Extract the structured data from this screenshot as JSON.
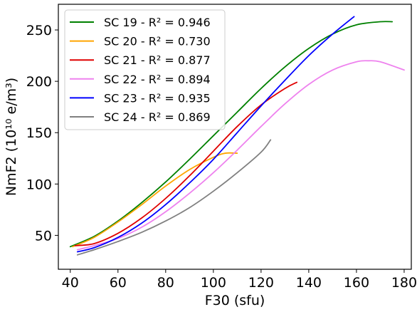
{
  "chart_data": {
    "type": "line",
    "title": "",
    "xlabel": "F30 (sfu)",
    "ylabel": "NmF2 (10¹⁰ e/m³)",
    "xlim": [
      35,
      183
    ],
    "ylim": [
      17,
      275
    ],
    "xticks": [
      40,
      60,
      80,
      100,
      120,
      140,
      160,
      180
    ],
    "yticks": [
      50,
      100,
      150,
      200,
      250
    ],
    "grid": false,
    "legend_position": "top-left",
    "series": [
      {
        "name": "SC 19 - R² = 0.946",
        "color": "#008000",
        "x": [
          40,
          50,
          60,
          70,
          80,
          90,
          100,
          110,
          120,
          130,
          140,
          150,
          160,
          170,
          175
        ],
        "y": [
          39,
          49,
          64,
          82,
          102,
          124,
          147,
          170,
          193,
          214,
          232,
          246,
          255,
          258,
          258
        ]
      },
      {
        "name": "SC 20 - R² = 0.730",
        "color": "#FFA500",
        "x": [
          41,
          50,
          60,
          70,
          80,
          90,
          100,
          105,
          110
        ],
        "y": [
          39,
          48,
          63,
          80,
          98,
          114,
          126,
          130,
          130
        ]
      },
      {
        "name": "SC 21 - R² = 0.877",
        "color": "#E00000",
        "x": [
          42,
          50,
          60,
          70,
          80,
          90,
          100,
          110,
          120,
          130,
          135
        ],
        "y": [
          40,
          42,
          52,
          67,
          86,
          108,
          132,
          156,
          177,
          193,
          199
        ]
      },
      {
        "name": "SC 22 - R² = 0.894",
        "color": "#EE82EE",
        "x": [
          43,
          50,
          60,
          70,
          80,
          90,
          100,
          110,
          120,
          130,
          140,
          150,
          160,
          165,
          170,
          180
        ],
        "y": [
          36,
          40,
          47,
          58,
          73,
          91,
          111,
          133,
          156,
          178,
          197,
          211,
          219,
          220,
          219,
          211
        ]
      },
      {
        "name": "SC 23 - R² = 0.935",
        "color": "#0000FF",
        "x": [
          43,
          50,
          60,
          70,
          80,
          90,
          100,
          110,
          120,
          130,
          140,
          150,
          159
        ],
        "y": [
          34,
          38,
          48,
          62,
          80,
          101,
          124,
          150,
          176,
          201,
          225,
          246,
          263
        ]
      },
      {
        "name": "SC 24 - R² = 0.869",
        "color": "#808080",
        "x": [
          43,
          50,
          60,
          70,
          80,
          90,
          100,
          110,
          120,
          124
        ],
        "y": [
          31,
          36,
          44,
          53,
          64,
          77,
          93,
          111,
          131,
          143
        ]
      }
    ]
  }
}
